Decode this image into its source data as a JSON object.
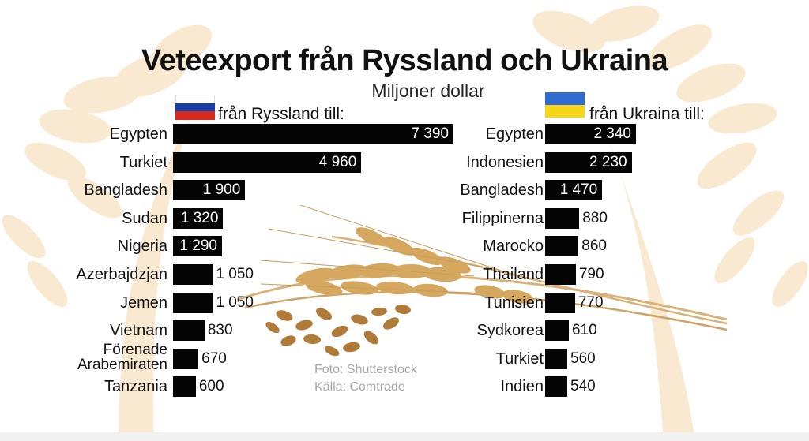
{
  "title": "Veteexport från Ryssland och Ukraina",
  "subtitle": "Miljoner dollar",
  "colors": {
    "bar": "#050505",
    "russia_flag": [
      "#ffffff",
      "#1a3da6",
      "#d52b1e"
    ],
    "ukraine_flag": [
      "#2f6bd1",
      "#f7d618"
    ]
  },
  "chart_data": [
    {
      "type": "bar",
      "orientation": "horizontal",
      "header": "från Ryssland till:",
      "categories": [
        "Egypten",
        "Turkiet",
        "Bangladesh",
        "Sudan",
        "Nigeria",
        "Azerbajdzjan",
        "Jemen",
        "Vietnam",
        "Förenade Arabemiraten",
        "Tanzania"
      ],
      "values": [
        7390,
        4960,
        1900,
        1320,
        1290,
        1050,
        1050,
        830,
        670,
        600
      ],
      "value_labels": [
        "7 390",
        "4 960",
        "1 900",
        "1 320",
        "1 290",
        "1 050",
        "1 050",
        "830",
        "670",
        "600"
      ]
    },
    {
      "type": "bar",
      "orientation": "horizontal",
      "header": "från Ukraina till:",
      "categories": [
        "Egypten",
        "Indonesien",
        "Bangladesh",
        "Filippinerna",
        "Marocko",
        "Thailand",
        "Tunisien",
        "Sydkorea",
        "Turkiet",
        "Indien"
      ],
      "values": [
        2340,
        2230,
        1470,
        880,
        860,
        790,
        770,
        610,
        560,
        540
      ],
      "value_labels": [
        "2 340",
        "2 230",
        "1 470",
        "880",
        "860",
        "790",
        "770",
        "610",
        "560",
        "540"
      ]
    }
  ],
  "credits": {
    "photo": "Foto: Shutterstock",
    "source": "Källa: Comtrade"
  }
}
